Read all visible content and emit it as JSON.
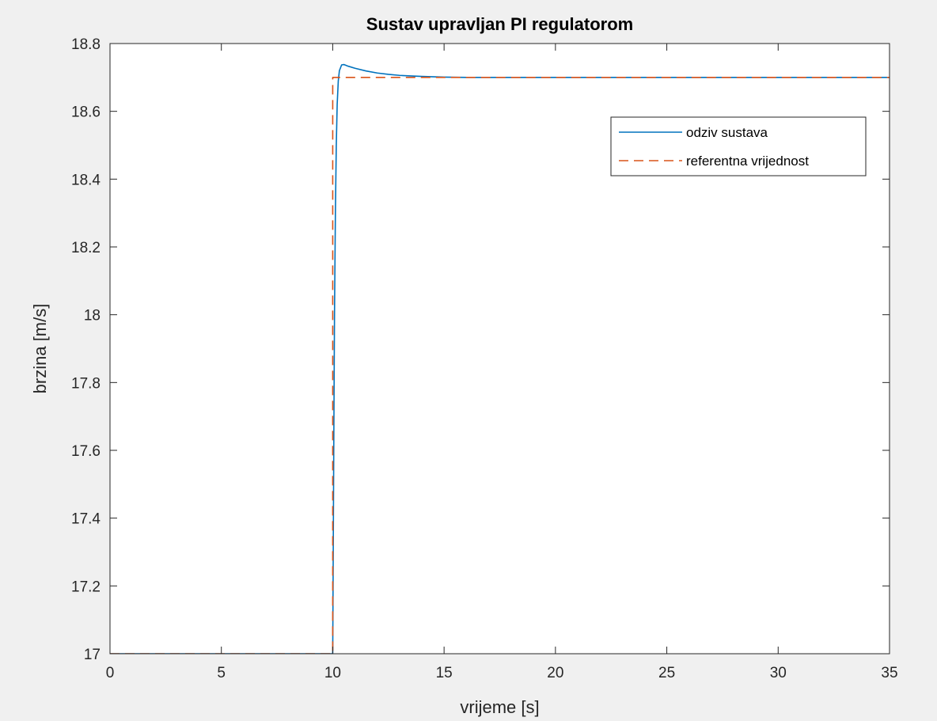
{
  "chart_data": {
    "type": "line",
    "title": "Sustav upravljan PI regulatorom",
    "xlabel": "vrijeme [s]",
    "ylabel": "brzina [m/s]",
    "xlim": [
      0,
      35
    ],
    "ylim": [
      17,
      18.8
    ],
    "xticks": [
      0,
      5,
      10,
      15,
      20,
      25,
      30,
      35
    ],
    "xtick_labels": [
      "0",
      "5",
      "10",
      "15",
      "20",
      "25",
      "30",
      "35"
    ],
    "yticks": [
      17,
      17.2,
      17.4,
      17.6,
      17.8,
      18,
      18.2,
      18.4,
      18.6,
      18.8
    ],
    "ytick_labels": [
      "17",
      "17.2",
      "17.4",
      "17.6",
      "17.8",
      "18",
      "18.2",
      "18.4",
      "18.6",
      "18.8"
    ],
    "grid": false,
    "legend_position": "top-right",
    "series": [
      {
        "name": "odziv sustava",
        "color": "#0072BD",
        "style": "solid",
        "x": [
          0,
          10,
          10.02,
          10.05,
          10.08,
          10.12,
          10.16,
          10.2,
          10.25,
          10.3,
          10.4,
          10.5,
          10.7,
          11,
          11.5,
          12,
          12.5,
          13,
          14,
          15,
          16,
          17,
          20,
          25,
          30,
          35
        ],
        "y": [
          17,
          17,
          17.26,
          17.65,
          18.0,
          18.3,
          18.5,
          18.62,
          18.69,
          18.72,
          18.737,
          18.738,
          18.733,
          18.727,
          18.719,
          18.713,
          18.709,
          18.706,
          18.703,
          18.701,
          18.7,
          18.7,
          18.7,
          18.7,
          18.7,
          18.7
        ]
      },
      {
        "name": "referentna vrijednost",
        "color": "#D95319",
        "style": "dashed",
        "x": [
          0,
          10,
          10,
          35
        ],
        "y": [
          17,
          17,
          18.7,
          18.7
        ]
      }
    ]
  }
}
